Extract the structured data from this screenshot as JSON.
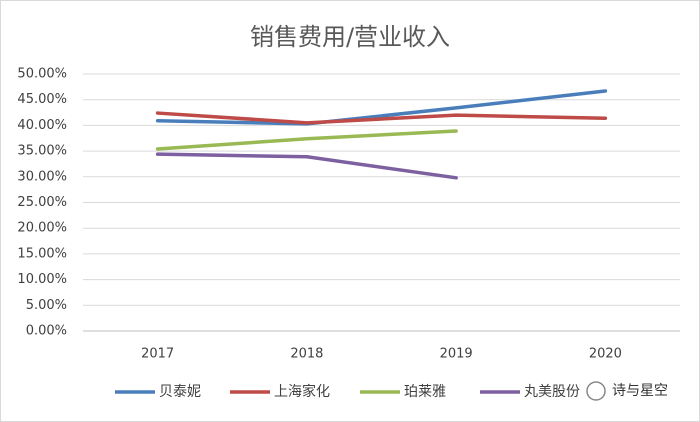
{
  "chart_data": {
    "type": "line",
    "title": "销售费用/营业收入",
    "categories": [
      "2017",
      "2018",
      "2019",
      "2020"
    ],
    "series": [
      {
        "name": "贝泰妮",
        "color": "#4a7ebb",
        "values": [
          40.9,
          40.3,
          43.4,
          46.7
        ]
      },
      {
        "name": "上海家化",
        "color": "#be4b48",
        "values": [
          42.4,
          40.5,
          42.0,
          41.4
        ]
      },
      {
        "name": "珀莱雅",
        "color": "#98b954",
        "values": [
          35.4,
          37.4,
          38.9,
          null
        ]
      },
      {
        "name": "丸美股份",
        "color": "#7d60a0",
        "values": [
          34.4,
          33.9,
          29.8,
          null
        ]
      }
    ],
    "ylim": [
      0,
      50
    ],
    "yticks": [
      {
        "value": 0,
        "label": "0.00%"
      },
      {
        "value": 5,
        "label": "5.00%"
      },
      {
        "value": 10,
        "label": "10.00%"
      },
      {
        "value": 15,
        "label": "15.00%"
      },
      {
        "value": 20,
        "label": "20.00%"
      },
      {
        "value": 25,
        "label": "25.00%"
      },
      {
        "value": 30,
        "label": "30.00%"
      },
      {
        "value": 35,
        "label": "35.00%"
      },
      {
        "value": 40,
        "label": "40.00%"
      },
      {
        "value": 45,
        "label": "45.00%"
      },
      {
        "value": 50,
        "label": "50.00%"
      }
    ],
    "grid": true,
    "legend": "bottom",
    "watermark": "诗与星空"
  }
}
